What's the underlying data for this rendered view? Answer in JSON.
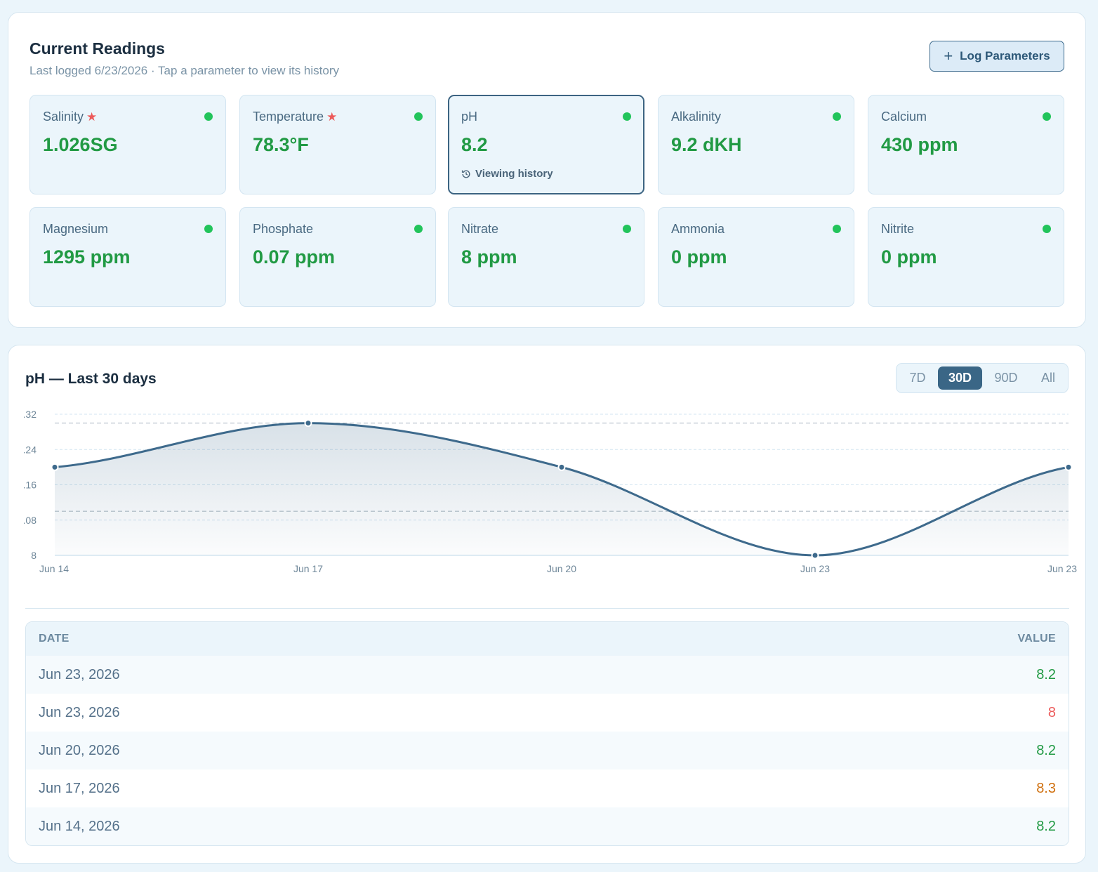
{
  "readings": {
    "title": "Current Readings",
    "subtitle": "Last logged 6/23/2026 · Tap a parameter to view its history",
    "log_button": {
      "icon": "plus-icon",
      "label": "Log Parameters"
    },
    "viewing_label": "Viewing history",
    "status_color": "#22c45b",
    "value_color": "#219a44",
    "cards": [
      {
        "name": "Salinity",
        "value": "1.026SG",
        "starred": true,
        "selected": false
      },
      {
        "name": "Temperature",
        "value": "78.3°F",
        "starred": true,
        "selected": false
      },
      {
        "name": "pH",
        "value": "8.2",
        "starred": false,
        "selected": true
      },
      {
        "name": "Alkalinity",
        "value": "9.2 dKH",
        "starred": false,
        "selected": false
      },
      {
        "name": "Calcium",
        "value": "430 ppm",
        "starred": false,
        "selected": false
      },
      {
        "name": "Magnesium",
        "value": "1295 ppm",
        "starred": false,
        "selected": false
      },
      {
        "name": "Phosphate",
        "value": "0.07 ppm",
        "starred": false,
        "selected": false
      },
      {
        "name": "Nitrate",
        "value": "8 ppm",
        "starred": false,
        "selected": false
      },
      {
        "name": "Ammonia",
        "value": "0 ppm",
        "starred": false,
        "selected": false
      },
      {
        "name": "Nitrite",
        "value": "0 ppm",
        "starred": false,
        "selected": false
      }
    ]
  },
  "history": {
    "title": "pH — Last 30 days",
    "ranges": [
      "7D",
      "30D",
      "90D",
      "All"
    ],
    "active_range": "30D",
    "table": {
      "headers": {
        "date": "DATE",
        "value": "VALUE"
      },
      "rows": [
        {
          "date": "Jun 23, 2026",
          "value": "8.2",
          "color": "#219a44"
        },
        {
          "date": "Jun 23, 2026",
          "value": "8",
          "color": "#ec5a5a"
        },
        {
          "date": "Jun 20, 2026",
          "value": "8.2",
          "color": "#219a44"
        },
        {
          "date": "Jun 17, 2026",
          "value": "8.3",
          "color": "#d0700f"
        },
        {
          "date": "Jun 14, 2026",
          "value": "8.2",
          "color": "#219a44"
        }
      ]
    }
  },
  "chart_data": {
    "type": "area",
    "title": "",
    "xlabel": "",
    "ylabel": "",
    "x": [
      "Jun 14",
      "Jun 17",
      "Jun 20",
      "Jun 23",
      "Jun 23"
    ],
    "values": [
      8.2,
      8.3,
      8.2,
      8.0,
      8.2
    ],
    "ylim": [
      8.0,
      8.32
    ],
    "y_ticks": [
      ".32",
      ".24",
      ".16",
      ".08",
      "8"
    ],
    "y_tick_values": [
      8.32,
      8.24,
      8.16,
      8.08,
      8.0
    ],
    "reference_lines": [
      8.3,
      8.1
    ],
    "grid": true,
    "line_color": "#3e6a8c"
  }
}
